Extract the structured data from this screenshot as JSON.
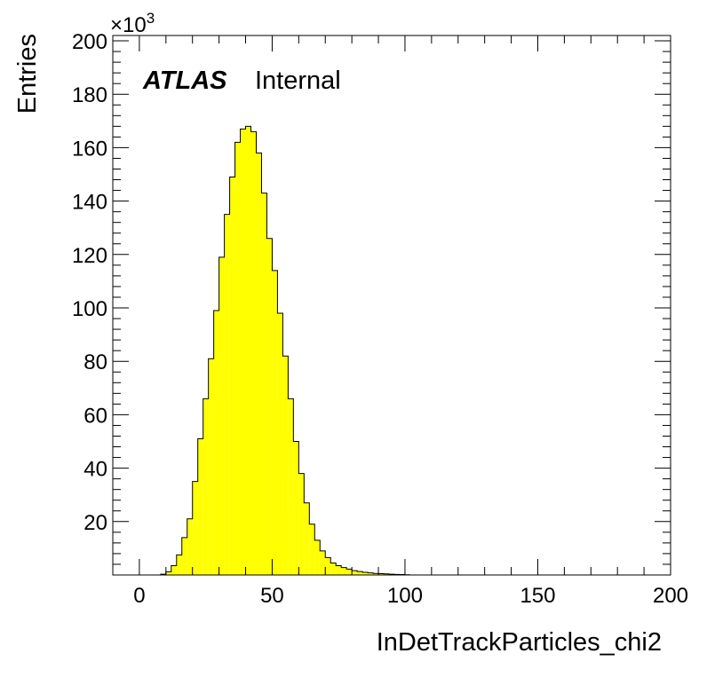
{
  "chart_data": {
    "type": "bar",
    "title": "",
    "xlabel": "InDetTrackParticles_chi2",
    "ylabel": "Entries",
    "y_multiplier": "×10",
    "y_multiplier_exp": "3",
    "label_bold": "ATLAS",
    "label_status": "Internal",
    "xlim": [
      -10,
      200
    ],
    "ylim": [
      0,
      202
    ],
    "x_ticks": [
      0,
      50,
      100,
      150,
      200
    ],
    "x_tick_labels": [
      "0",
      "50",
      "100",
      "150",
      "200"
    ],
    "y_ticks": [
      20,
      40,
      60,
      80,
      100,
      120,
      140,
      160,
      180,
      200
    ],
    "y_tick_labels": [
      "20",
      "40",
      "60",
      "80",
      "100",
      "120",
      "140",
      "160",
      "180",
      "200"
    ],
    "bin_width": 2,
    "bin_start": 0,
    "values": [
      0,
      0,
      0,
      0,
      0.3,
      1.2,
      3.5,
      7.5,
      14,
      21,
      35,
      51,
      66,
      81,
      99,
      119,
      135,
      149,
      162,
      167,
      168,
      166,
      158,
      143,
      126,
      114,
      98,
      82,
      66,
      50,
      38,
      27,
      19,
      13,
      9,
      6.5,
      4.5,
      3.5,
      2.8,
      2.2,
      1.6,
      1.3,
      1.0,
      0.8,
      0.6,
      0.5,
      0.4,
      0.3,
      0.2,
      0.15,
      0.1
    ],
    "fill_color": "#ffff00",
    "line_color": "#000000",
    "grid": false,
    "legend": false
  }
}
